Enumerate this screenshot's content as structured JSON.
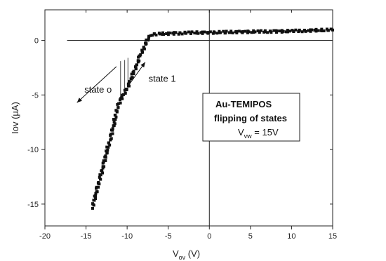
{
  "chart_data": {
    "type": "scatter",
    "xlabel": {
      "main": "V",
      "sub": "ov",
      "unit": " (V)"
    },
    "ylabel": "Iov (µA)",
    "xlim": [
      -20,
      15
    ],
    "ylim": [
      -17,
      2.8
    ],
    "xticks": [
      -20,
      -15,
      -10,
      -5,
      0,
      5,
      10,
      15
    ],
    "yticks": [
      0,
      -5,
      -10,
      -15
    ],
    "xtick_labels": [
      "-20",
      "-15",
      "-10",
      "-5",
      "0",
      "5",
      "10",
      "15"
    ],
    "ytick_labels": [
      "0",
      "-5",
      "-10",
      "-15"
    ],
    "reference_lines": {
      "horizontal_y": 0,
      "horizontal_from_x": -17.3,
      "vertical_x": 0
    },
    "series": [
      {
        "points": [
          [
            -14.2,
            -15.3
          ],
          [
            -14.0,
            -14.6
          ],
          [
            -13.6,
            -13.5
          ],
          [
            -13.2,
            -12.4
          ],
          [
            -12.8,
            -11.2
          ],
          [
            -12.4,
            -10.0
          ],
          [
            -12.0,
            -8.9
          ],
          [
            -11.6,
            -7.6
          ],
          [
            -11.2,
            -6.2
          ],
          [
            -10.8,
            -5.4
          ],
          [
            -10.4,
            -5.0
          ],
          [
            -10.0,
            -4.4
          ],
          [
            -9.6,
            -3.7
          ],
          [
            -9.2,
            -2.9
          ],
          [
            -8.8,
            -2.3
          ],
          [
            -8.5,
            -1.5
          ],
          [
            -8.0,
            -0.8
          ],
          [
            -7.5,
            0.2
          ],
          [
            -7.0,
            0.55
          ],
          [
            -6.0,
            0.6
          ],
          [
            -4.0,
            0.65
          ],
          [
            -2.0,
            0.7
          ],
          [
            0.0,
            0.72
          ],
          [
            2.0,
            0.75
          ],
          [
            4.0,
            0.78
          ],
          [
            6.0,
            0.8
          ],
          [
            8.0,
            0.82
          ],
          [
            10.0,
            0.85
          ],
          [
            12.0,
            0.9
          ],
          [
            14.0,
            0.95
          ],
          [
            15.0,
            0.95
          ]
        ]
      }
    ],
    "transitions": [
      {
        "x": -10.8,
        "from": -1.9,
        "to": -5.4
      },
      {
        "x": -10.3,
        "from": -1.8,
        "to": -5.0
      },
      {
        "x": -9.9,
        "from": -1.6,
        "to": -4.6
      }
    ],
    "annotations": [
      {
        "text": "state o",
        "x": -15.2,
        "y": -4.8
      },
      {
        "text": "state 1",
        "x": -7.4,
        "y": -3.8
      }
    ],
    "arrows": [
      {
        "from": [
          -11.3,
          -2.4
        ],
        "to": [
          -16.1,
          -5.7
        ]
      },
      {
        "from": [
          -9.9,
          -4.2
        ],
        "to": [
          -7.8,
          -2.0
        ]
      }
    ],
    "info_box": {
      "line1": "Au-TEMIPOS",
      "line2": "flipping of states",
      "line3_main": "V",
      "line3_sub": "vw",
      "line3_rest": " = 15V"
    }
  }
}
